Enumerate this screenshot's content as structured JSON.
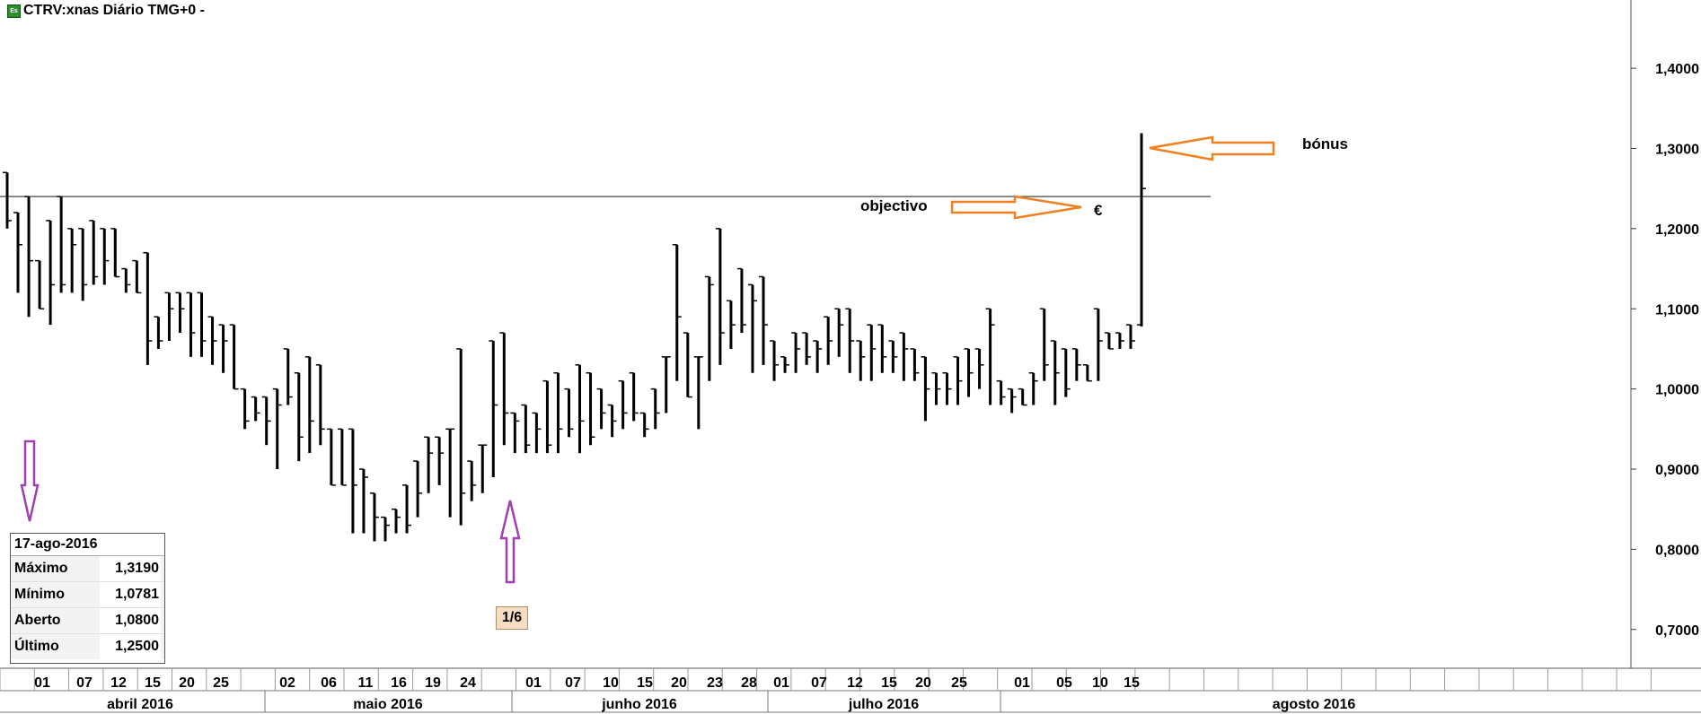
{
  "title": "CTRV:xnas Diário TMG+0 -",
  "info_box": {
    "date": "17-ago-2016",
    "rows": [
      {
        "label": "Máximo",
        "value": "1,3190"
      },
      {
        "label": "Mínimo",
        "value": "1,0781"
      },
      {
        "label": "Aberto",
        "value": "1,0800"
      },
      {
        "label": "Último",
        "value": "1,2500"
      }
    ]
  },
  "annotations": {
    "objective": "objectivo",
    "euro": "€",
    "bonus": "bónus",
    "badge": "1/6"
  },
  "colors": {
    "bar": "#000000",
    "arrow_orange": "#f07f20",
    "arrow_purple": "#a040b0",
    "badge_bg": "#f6dcc0"
  },
  "chart_data": {
    "type": "ohlc",
    "title": "CTRV:xnas Diário TMG+0 -",
    "ylim": [
      0.64,
      1.45
    ],
    "y_ticks": [
      "1,4000",
      "1,3000",
      "1,2000",
      "1,1000",
      "1,0000",
      "0,9000",
      "0,8000",
      "0,7000"
    ],
    "y_tick_values": [
      1.4,
      1.3,
      1.2,
      1.1,
      1.0,
      0.9,
      0.8,
      0.7
    ],
    "objective_level": 1.24,
    "day_labels": [
      "01",
      "07",
      "12",
      "15",
      "20",
      "25",
      "02",
      "06",
      "11",
      "16",
      "19",
      "24",
      "01",
      "07",
      "10",
      "15",
      "20",
      "23",
      "28",
      "01",
      "07",
      "12",
      "15",
      "20",
      "25",
      "01",
      "05",
      "10",
      "15"
    ],
    "months": [
      "abril 2016",
      "maio 2016",
      "junho 2016",
      "julho 2016",
      "agosto 2016"
    ],
    "series": [
      {
        "values": [
          [
            1.27,
            1.27,
            1.2,
            1.21
          ],
          [
            1.22,
            1.22,
            1.12,
            1.18
          ],
          [
            1.24,
            1.24,
            1.09,
            1.16
          ],
          [
            1.16,
            1.16,
            1.1,
            1.1
          ],
          [
            1.21,
            1.21,
            1.08,
            1.13
          ],
          [
            1.24,
            1.24,
            1.12,
            1.13
          ],
          [
            1.2,
            1.2,
            1.12,
            1.18
          ],
          [
            1.2,
            1.2,
            1.11,
            1.13
          ],
          [
            1.21,
            1.21,
            1.13,
            1.14
          ],
          [
            1.2,
            1.2,
            1.13,
            1.16
          ],
          [
            1.2,
            1.2,
            1.14,
            1.14
          ],
          [
            1.15,
            1.15,
            1.12,
            1.13
          ],
          [
            1.16,
            1.16,
            1.12,
            1.12
          ],
          [
            1.17,
            1.17,
            1.03,
            1.06
          ],
          [
            1.09,
            1.09,
            1.05,
            1.06
          ],
          [
            1.12,
            1.12,
            1.06,
            1.1
          ],
          [
            1.12,
            1.12,
            1.07,
            1.1
          ],
          [
            1.12,
            1.12,
            1.04,
            1.07
          ],
          [
            1.12,
            1.12,
            1.04,
            1.06
          ],
          [
            1.09,
            1.09,
            1.03,
            1.06
          ],
          [
            1.08,
            1.08,
            1.02,
            1.06
          ],
          [
            1.08,
            1.08,
            1.0,
            1.0
          ],
          [
            1.0,
            1.0,
            0.95,
            0.96
          ],
          [
            0.99,
            0.99,
            0.96,
            0.97
          ],
          [
            0.99,
            0.99,
            0.93,
            0.96
          ],
          [
            1.0,
            1.0,
            0.9,
            0.98
          ],
          [
            1.05,
            1.05,
            0.98,
            0.99
          ],
          [
            1.02,
            1.02,
            0.91,
            0.94
          ],
          [
            1.04,
            1.04,
            0.92,
            0.96
          ],
          [
            1.03,
            1.03,
            0.93,
            0.95
          ],
          [
            0.95,
            0.95,
            0.88,
            0.88
          ],
          [
            0.95,
            0.95,
            0.88,
            0.88
          ],
          [
            0.95,
            0.95,
            0.82,
            0.88
          ],
          [
            0.9,
            0.9,
            0.82,
            0.89
          ],
          [
            0.87,
            0.87,
            0.81,
            0.84
          ],
          [
            0.84,
            0.84,
            0.81,
            0.83
          ],
          [
            0.85,
            0.85,
            0.82,
            0.84
          ],
          [
            0.88,
            0.88,
            0.82,
            0.83
          ],
          [
            0.91,
            0.91,
            0.84,
            0.87
          ],
          [
            0.94,
            0.94,
            0.87,
            0.92
          ],
          [
            0.94,
            0.94,
            0.88,
            0.92
          ],
          [
            0.95,
            0.95,
            0.84,
            0.95
          ],
          [
            1.05,
            1.05,
            0.83,
            0.87
          ],
          [
            0.91,
            0.91,
            0.86,
            0.88
          ],
          [
            0.93,
            0.93,
            0.87,
            0.93
          ],
          [
            1.06,
            1.06,
            0.89,
            0.98
          ],
          [
            1.07,
            1.07,
            0.93,
            0.97
          ],
          [
            0.97,
            0.97,
            0.92,
            0.96
          ],
          [
            0.98,
            0.98,
            0.92,
            0.93
          ],
          [
            0.97,
            0.97,
            0.92,
            0.95
          ],
          [
            1.01,
            1.01,
            0.92,
            0.93
          ],
          [
            1.02,
            1.02,
            0.92,
            0.95
          ],
          [
            1.0,
            1.0,
            0.94,
            0.95
          ],
          [
            1.03,
            1.03,
            0.92,
            0.96
          ],
          [
            1.02,
            1.02,
            0.93,
            0.94
          ],
          [
            1.0,
            1.0,
            0.95,
            0.97
          ],
          [
            0.98,
            0.98,
            0.94,
            0.96
          ],
          [
            1.01,
            1.01,
            0.95,
            0.97
          ],
          [
            1.02,
            1.02,
            0.96,
            0.97
          ],
          [
            0.97,
            0.97,
            0.94,
            0.95
          ],
          [
            1.0,
            1.0,
            0.95,
            0.97
          ],
          [
            1.04,
            1.04,
            0.97,
            1.04
          ],
          [
            1.18,
            1.18,
            1.01,
            1.09
          ],
          [
            1.07,
            1.07,
            0.99,
            0.99
          ],
          [
            1.04,
            1.04,
            0.95,
            1.04
          ],
          [
            1.14,
            1.14,
            1.01,
            1.13
          ],
          [
            1.2,
            1.2,
            1.03,
            1.07
          ],
          [
            1.11,
            1.11,
            1.05,
            1.08
          ],
          [
            1.15,
            1.15,
            1.07,
            1.08
          ],
          [
            1.13,
            1.13,
            1.02,
            1.11
          ],
          [
            1.14,
            1.14,
            1.03,
            1.08
          ],
          [
            1.06,
            1.06,
            1.01,
            1.03
          ],
          [
            1.04,
            1.04,
            1.02,
            1.03
          ],
          [
            1.07,
            1.07,
            1.02,
            1.05
          ],
          [
            1.07,
            1.07,
            1.03,
            1.04
          ],
          [
            1.06,
            1.06,
            1.02,
            1.05
          ],
          [
            1.09,
            1.09,
            1.03,
            1.06
          ],
          [
            1.1,
            1.1,
            1.04,
            1.08
          ],
          [
            1.1,
            1.1,
            1.02,
            1.06
          ],
          [
            1.06,
            1.06,
            1.01,
            1.04
          ],
          [
            1.08,
            1.08,
            1.01,
            1.05
          ],
          [
            1.08,
            1.08,
            1.02,
            1.04
          ],
          [
            1.06,
            1.06,
            1.02,
            1.04
          ],
          [
            1.07,
            1.07,
            1.01,
            1.05
          ],
          [
            1.05,
            1.05,
            1.01,
            1.02
          ],
          [
            1.04,
            1.04,
            0.96,
            1.0
          ],
          [
            1.02,
            1.02,
            0.98,
            1.0
          ],
          [
            1.02,
            1.02,
            0.98,
            1.0
          ],
          [
            1.04,
            1.04,
            0.98,
            1.01
          ],
          [
            1.05,
            1.05,
            0.99,
            1.02
          ],
          [
            1.05,
            1.05,
            1.0,
            1.03
          ],
          [
            1.1,
            1.1,
            0.98,
            1.08
          ],
          [
            1.01,
            1.01,
            0.98,
            0.99
          ],
          [
            1.0,
            1.0,
            0.97,
            0.99
          ],
          [
            1.0,
            1.0,
            0.98,
            0.98
          ],
          [
            1.02,
            1.02,
            0.98,
            1.01
          ],
          [
            1.1,
            1.1,
            1.01,
            1.03
          ],
          [
            1.06,
            1.06,
            0.98,
            1.02
          ],
          [
            1.05,
            1.05,
            0.99,
            1.0
          ],
          [
            1.05,
            1.05,
            1.01,
            1.03
          ],
          [
            1.03,
            1.03,
            1.01,
            1.01
          ],
          [
            1.1,
            1.1,
            1.01,
            1.06
          ],
          [
            1.07,
            1.07,
            1.05,
            1.05
          ],
          [
            1.07,
            1.07,
            1.05,
            1.06
          ],
          [
            1.08,
            1.08,
            1.05,
            1.06
          ],
          [
            1.319,
            1.08,
            1.0781,
            1.25
          ]
        ]
      }
    ]
  }
}
